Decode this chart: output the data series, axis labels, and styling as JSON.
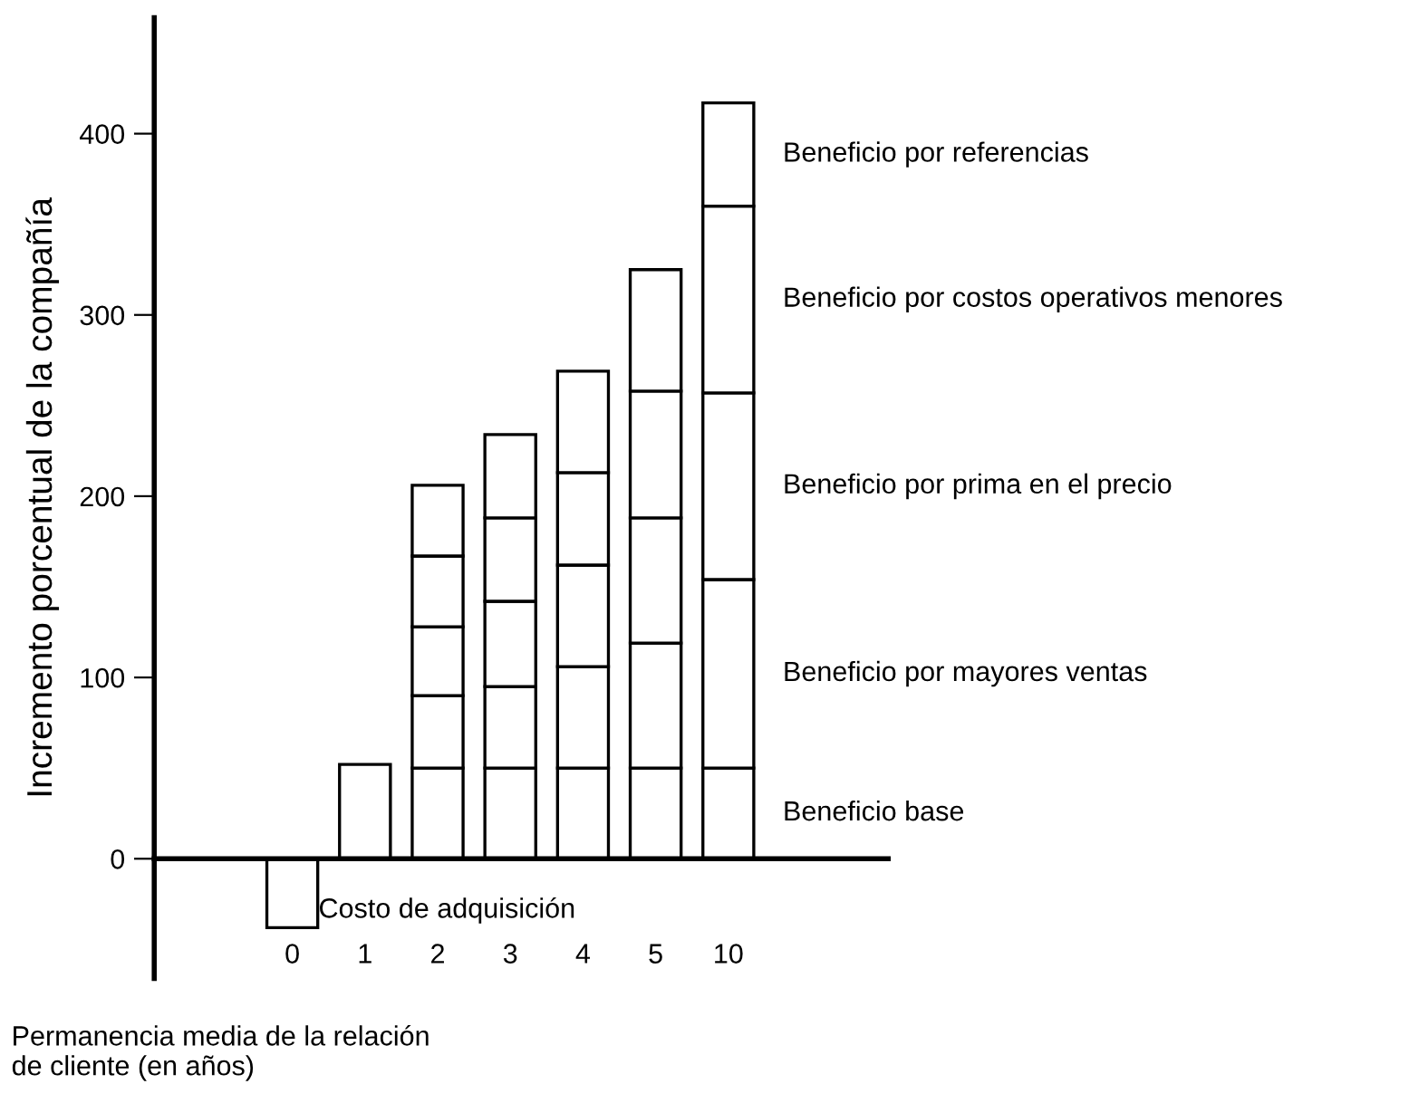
{
  "chart_data": {
    "type": "bar",
    "stacked": true,
    "xlabel": "Permanencia media de la relación\nde cliente (en años)",
    "ylabel": "Incremento porcentual de la compañía",
    "categories": [
      "0",
      "1",
      "2",
      "3",
      "4",
      "5",
      "10"
    ],
    "series": [
      {
        "name": "Costo de adquisición",
        "color": "#ffffff",
        "values": [
          -38,
          null,
          null,
          null,
          null,
          null,
          null
        ]
      },
      {
        "name": "Beneficio base",
        "color": "#ffffff",
        "values": [
          null,
          52,
          50,
          50,
          50,
          50,
          50
        ]
      },
      {
        "name": "Beneficio por mayores ventas",
        "color": "#ffffff",
        "values": [
          null,
          null,
          40,
          45,
          56,
          69,
          104
        ]
      },
      {
        "name": "Beneficio por prima en el precio",
        "color": "#ffffff",
        "values": [
          null,
          null,
          38,
          47,
          56,
          69,
          103
        ]
      },
      {
        "name": "Beneficio por costos operativos menores",
        "color": "#ffffff",
        "values": [
          null,
          null,
          39,
          46,
          51,
          70,
          103
        ]
      },
      {
        "name": "Beneficio por referencias",
        "color": "#ffffff",
        "values": [
          null,
          null,
          39,
          46,
          56,
          67,
          57
        ]
      }
    ],
    "ylim": [
      -66,
      464
    ],
    "yticks": [
      0,
      100,
      200,
      300,
      400
    ]
  }
}
